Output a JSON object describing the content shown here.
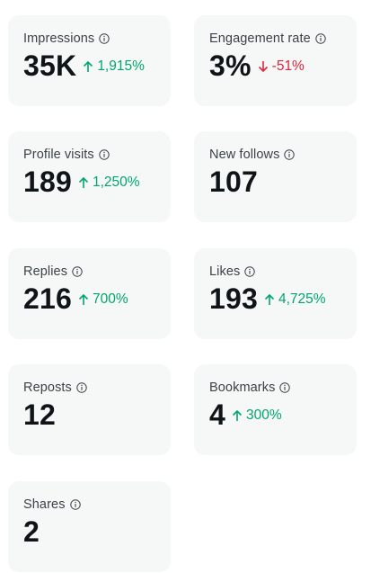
{
  "colors": {
    "card_bg": "#f6f7f7",
    "positive": "#00a76b",
    "negative": "#e0243d",
    "text": "#0f1419",
    "label": "#3b4248"
  },
  "metrics": [
    {
      "label": "Impressions",
      "value": "35K",
      "delta": "1,915%",
      "direction": "up",
      "icon": "info-icon"
    },
    {
      "label": "Engagement rate",
      "value": "3%",
      "delta": "-51%",
      "direction": "down",
      "icon": "info-icon"
    },
    {
      "label": "Profile visits",
      "value": "189",
      "delta": "1,250%",
      "direction": "up",
      "icon": "info-icon"
    },
    {
      "label": "New follows",
      "value": "107",
      "delta": "",
      "direction": "",
      "icon": "info-icon"
    },
    {
      "label": "Replies",
      "value": "216",
      "delta": "700%",
      "direction": "up",
      "icon": "info-icon"
    },
    {
      "label": "Likes",
      "value": "193",
      "delta": "4,725%",
      "direction": "up",
      "icon": "info-icon"
    },
    {
      "label": "Reposts",
      "value": "12",
      "delta": "",
      "direction": "",
      "icon": "info-icon"
    },
    {
      "label": "Bookmarks",
      "value": "4",
      "delta": "300%",
      "direction": "up",
      "icon": "info-icon"
    },
    {
      "label": "Shares",
      "value": "2",
      "delta": "",
      "direction": "",
      "icon": "info-icon"
    }
  ]
}
